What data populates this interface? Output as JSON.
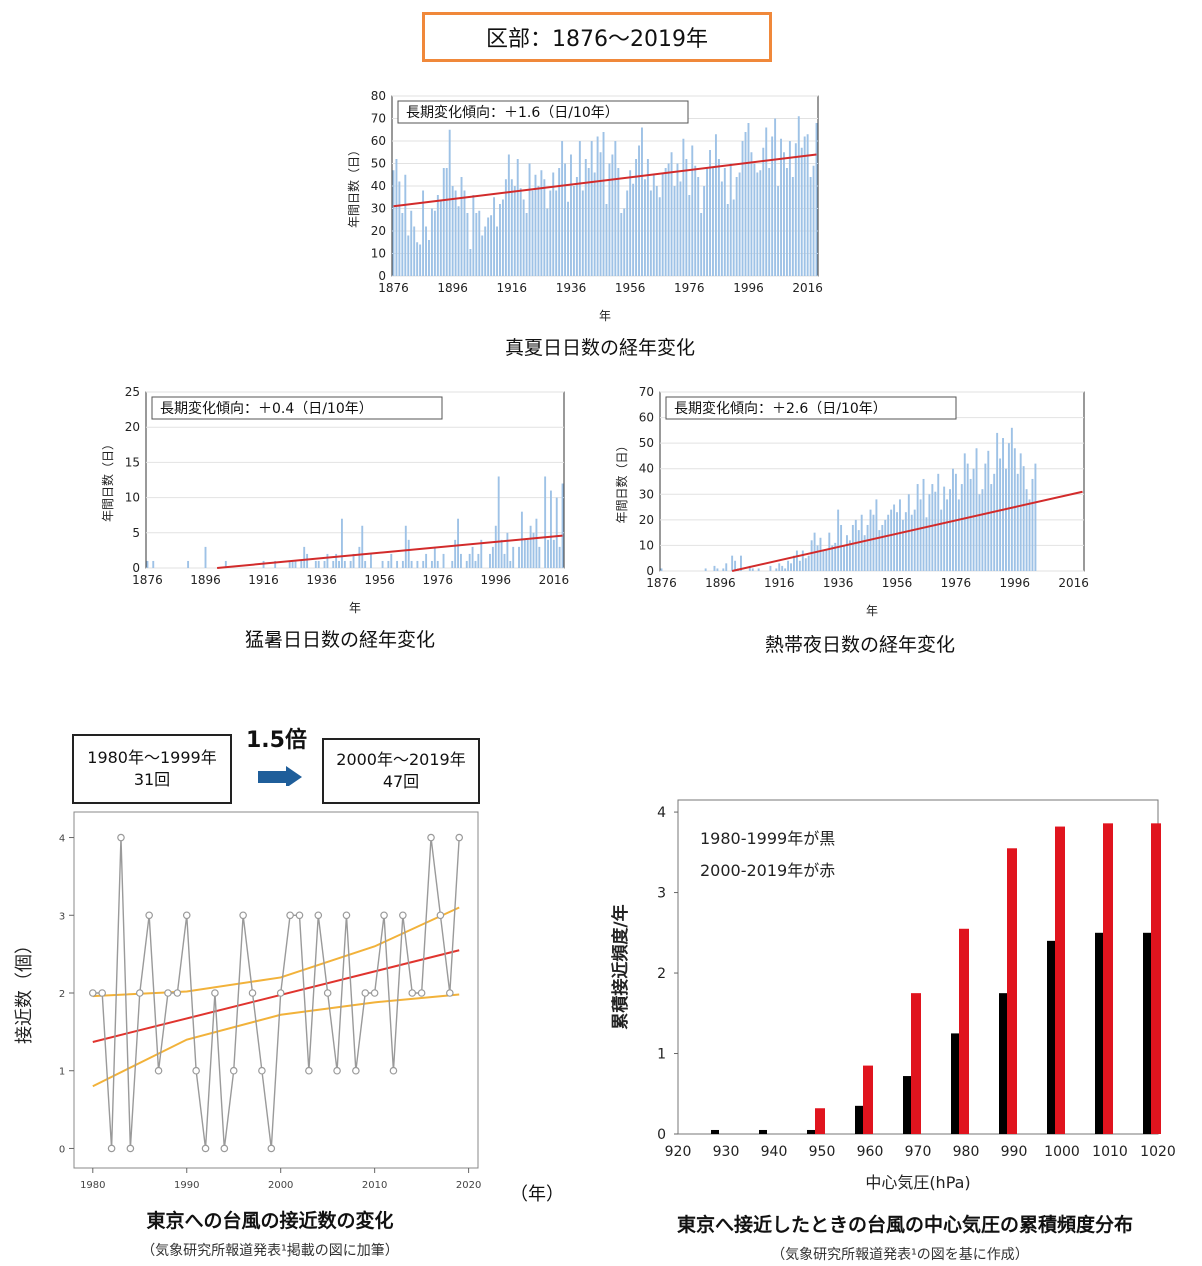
{
  "header": {
    "title": "区部：1876〜2019年"
  },
  "charts": {
    "manatsubi": {
      "caption": "真夏日日数の経年変化",
      "trend_label": "長期変化傾向：＋1.6（日/10年）",
      "xlabel": "年",
      "ylabel": "年間日数（日）",
      "x_ticks": [
        "1876",
        "1896",
        "1916",
        "1936",
        "1956",
        "1976",
        "1996",
        "2016"
      ],
      "y_ticks": [
        "0",
        "10",
        "20",
        "30",
        "40",
        "50",
        "60",
        "70",
        "80"
      ]
    },
    "moshobi": {
      "caption": "猛暑日日数の経年変化",
      "trend_label": "長期変化傾向：＋0.4（日/10年）",
      "xlabel": "年",
      "ylabel": "年間日数（日）",
      "x_ticks": [
        "1876",
        "1896",
        "1916",
        "1936",
        "1956",
        "1976",
        "1996",
        "2016"
      ],
      "y_ticks": [
        "0",
        "5",
        "10",
        "15",
        "20",
        "25"
      ]
    },
    "nettaiya": {
      "caption": "熱帯夜日数の経年変化",
      "trend_label": "長期変化傾向：＋2.6（日/10年）",
      "xlabel": "年",
      "ylabel": "年間日数（日）",
      "x_ticks": [
        "1876",
        "1896",
        "1916",
        "1936",
        "1956",
        "1976",
        "1996",
        "2016"
      ],
      "y_ticks": [
        "0",
        "10",
        "20",
        "30",
        "40",
        "50",
        "60",
        "70"
      ]
    },
    "typhoon_count": {
      "caption": "東京への台風の接近数の変化",
      "note": "（気象研究所報道発表¹掲載の図に加筆）",
      "period1": {
        "years": "1980年〜1999年",
        "count": "31回"
      },
      "period2": {
        "years": "2000年〜2019年",
        "count": "47回"
      },
      "multiplier": "1.5倍",
      "ylabel": "接近数（個）",
      "x_unit": "（年）",
      "x_ticks": [
        "1980",
        "1990",
        "2000",
        "2010",
        "2020"
      ],
      "y_ticks": [
        "0",
        "1",
        "2",
        "3",
        "4"
      ]
    },
    "typhoon_pressure": {
      "caption": "東京へ接近したときの台風の中心気圧の累積頻度分布",
      "note": "（気象研究所報道発表¹の図を基に作成）",
      "legend1": "1980-1999年が黒",
      "legend2": "2000-2019年が赤",
      "xlabel": "中心気圧(hPa)",
      "ylabel": "累積接近頻度/年",
      "x_ticks": [
        "920",
        "930",
        "940",
        "950",
        "960",
        "970",
        "980",
        "990",
        "1000",
        "1010",
        "1020"
      ],
      "y_ticks": [
        "0",
        "1",
        "2",
        "3",
        "4"
      ]
    }
  },
  "chart_data": [
    {
      "type": "bar",
      "id": "manatsubi",
      "x_range": [
        1876,
        2019
      ],
      "ylim": [
        0,
        80
      ],
      "trend_line": {
        "x": [
          1876,
          2019
        ],
        "y": [
          31,
          54
        ]
      },
      "values": [
        47,
        52,
        42,
        28,
        45,
        18,
        29,
        22,
        15,
        14,
        38,
        22,
        16,
        30,
        29,
        36,
        34,
        48,
        48,
        65,
        40,
        38,
        31,
        44,
        38,
        28,
        12,
        36,
        28,
        29,
        18,
        22,
        26,
        27,
        35,
        22,
        32,
        34,
        43,
        54,
        43,
        40,
        52,
        39,
        34,
        28,
        50,
        38,
        45,
        40,
        47,
        43,
        30,
        38,
        46,
        38,
        48,
        60,
        50,
        33,
        54,
        40,
        44,
        60,
        38,
        52,
        48,
        60,
        46,
        62,
        55,
        64,
        32,
        50,
        54,
        60,
        48,
        28,
        30,
        38,
        47,
        41,
        52,
        58,
        66,
        43,
        52,
        38,
        45,
        40,
        35,
        46,
        48,
        50,
        55,
        40,
        50,
        42,
        61,
        52,
        36,
        58,
        49,
        44,
        28,
        40,
        48,
        56,
        48,
        63,
        52,
        42,
        48,
        32,
        50,
        34,
        44,
        46,
        60,
        64,
        68,
        55,
        50,
        46,
        47,
        57,
        66,
        48,
        62,
        70,
        40,
        61,
        55,
        48,
        60,
        44,
        59,
        71,
        57,
        62,
        63,
        44,
        49,
        68
      ]
    },
    {
      "type": "bar",
      "id": "moshobi",
      "x_range": [
        1876,
        2019
      ],
      "ylim": [
        0,
        25
      ],
      "trend_line": {
        "x": [
          1900,
          2019
        ],
        "y": [
          0,
          4.6
        ]
      },
      "values": [
        1,
        0,
        1,
        0,
        0,
        0,
        0,
        0,
        0,
        0,
        0,
        0,
        0,
        0,
        1,
        0,
        0,
        0,
        0,
        0,
        3,
        0,
        0,
        0,
        0,
        0,
        0,
        1,
        0,
        0,
        0,
        0,
        0,
        0,
        0,
        0,
        0,
        0,
        0,
        0,
        1,
        0,
        0,
        0,
        1,
        0,
        0,
        0,
        0,
        1,
        1,
        1,
        0,
        1,
        3,
        2,
        0,
        0,
        1,
        1,
        0,
        1,
        2,
        0,
        1,
        2,
        1,
        7,
        1,
        0,
        1,
        2,
        0,
        3,
        6,
        1,
        0,
        2,
        0,
        0,
        0,
        1,
        0,
        1,
        2,
        0,
        1,
        0,
        1,
        6,
        4,
        1,
        0,
        1,
        0,
        1,
        2,
        0,
        1,
        3,
        1,
        0,
        2,
        0,
        0,
        1,
        4,
        7,
        2,
        0,
        1,
        2,
        3,
        1,
        2,
        4,
        0,
        0,
        2,
        3,
        6,
        13,
        4,
        2,
        5,
        1,
        3,
        0,
        3,
        8,
        4,
        4,
        6,
        5,
        7,
        3,
        0,
        13,
        4,
        11,
        4,
        10,
        3,
        12
      ]
    },
    {
      "type": "bar",
      "id": "nettaiya",
      "x_range": [
        1876,
        2019
      ],
      "ylim": [
        0,
        70
      ],
      "trend_line": {
        "x": [
          1900,
          2019
        ],
        "y": [
          0,
          31
        ]
      },
      "values": [
        1,
        0,
        0,
        0,
        0,
        0,
        0,
        0,
        0,
        0,
        0,
        0,
        0,
        0,
        0,
        1,
        0,
        0,
        2,
        1,
        0,
        1,
        3,
        0,
        6,
        4,
        1,
        6,
        0,
        0,
        2,
        1,
        0,
        1,
        0,
        0,
        0,
        2,
        0,
        1,
        3,
        2,
        1,
        4,
        3,
        6,
        8,
        4,
        8,
        5,
        6,
        12,
        15,
        10,
        13,
        8,
        8,
        15,
        10,
        11,
        24,
        18,
        10,
        14,
        12,
        18,
        20,
        16,
        22,
        14,
        18,
        24,
        22,
        28,
        16,
        18,
        20,
        22,
        24,
        26,
        23,
        28,
        20,
        23,
        30,
        22,
        24,
        34,
        28,
        36,
        21,
        30,
        34,
        31,
        38,
        24,
        33,
        28,
        32,
        40,
        38,
        28,
        34,
        46,
        42,
        36,
        40,
        48,
        30,
        32,
        42,
        47,
        34,
        38,
        54,
        44,
        52,
        40,
        50,
        56,
        48,
        38,
        46,
        41,
        32,
        28,
        36,
        42
      ]
    },
    {
      "type": "line",
      "id": "typhoon_count",
      "x": [
        1980,
        1981,
        1982,
        1983,
        1984,
        1985,
        1986,
        1987,
        1988,
        1989,
        1990,
        1991,
        1992,
        1993,
        1994,
        1995,
        1996,
        1997,
        1998,
        1999,
        2000,
        2001,
        2002,
        2003,
        2004,
        2005,
        2006,
        2007,
        2008,
        2009,
        2010,
        2011,
        2012,
        2013,
        2014,
        2015,
        2016,
        2017,
        2018,
        2019
      ],
      "y": [
        2,
        2,
        0,
        4,
        0,
        2,
        3,
        1,
        2,
        2,
        3,
        1,
        0,
        2,
        0,
        1,
        3,
        2,
        1,
        0,
        2,
        3,
        3,
        1,
        3,
        2,
        1,
        3,
        1,
        2,
        2,
        3,
        1,
        3,
        2,
        2,
        4,
        3,
        2,
        4
      ],
      "ylim": [
        0,
        4
      ],
      "trend": {
        "x": [
          1980,
          2019
        ],
        "y": [
          1.37,
          2.55
        ]
      },
      "confidence_upper": {
        "x": [
          1980,
          1990,
          2000,
          2010,
          2019
        ],
        "y": [
          1.96,
          2.02,
          2.2,
          2.6,
          3.1
        ]
      },
      "confidence_lower": {
        "x": [
          1980,
          1990,
          2000,
          2010,
          2019
        ],
        "y": [
          0.8,
          1.4,
          1.72,
          1.88,
          1.98
        ]
      },
      "colors": {
        "points": "#9a9a9a",
        "trend": "#e0342e",
        "band": "#f2b23a"
      }
    },
    {
      "type": "bar",
      "id": "typhoon_pressure",
      "categories": [
        "930",
        "940",
        "950",
        "960",
        "970",
        "980",
        "990",
        "1000",
        "1010",
        "1020"
      ],
      "series": [
        {
          "name": "1980-1999",
          "color": "#000000",
          "values": [
            0.05,
            0.05,
            0.05,
            0.35,
            0.72,
            1.25,
            1.75,
            2.4,
            2.5,
            2.5
          ]
        },
        {
          "name": "2000-2019",
          "color": "#e0141e",
          "values": [
            0,
            0,
            0.32,
            0.85,
            1.75,
            2.55,
            3.55,
            3.82,
            3.86,
            3.86
          ]
        }
      ],
      "ylim": [
        0,
        4
      ],
      "xlim": [
        920,
        1020
      ]
    }
  ]
}
